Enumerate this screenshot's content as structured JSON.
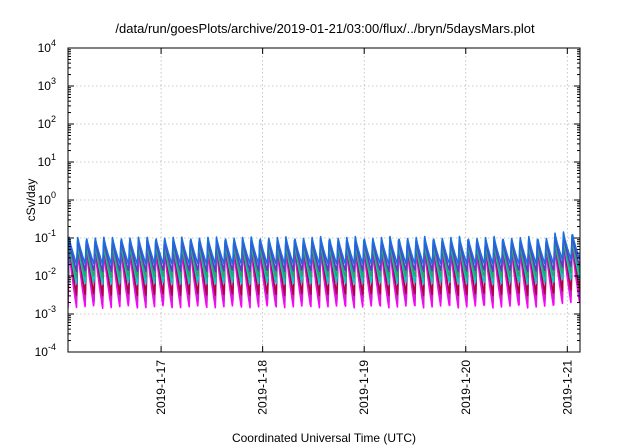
{
  "chart_data": {
    "type": "line",
    "title": "/data/run/goesPlots/archive/2019-01-21/03:00/flux/../bryn/5daysMars.plot",
    "xlabel": "Coordinated Universal Time (UTC)",
    "ylabel": "cSv/day",
    "yscale": "log",
    "ylim": [
      0.0001,
      10000
    ],
    "xlim": [
      "2019-01-16 02:00",
      "2019-01-21 03:00"
    ],
    "grid": true,
    "y_ticks": [
      {
        "base": "10",
        "exp": "-4",
        "value": 0.0001
      },
      {
        "base": "10",
        "exp": "-3",
        "value": 0.001
      },
      {
        "base": "10",
        "exp": "-2",
        "value": 0.01
      },
      {
        "base": "10",
        "exp": "-1",
        "value": 0.1
      },
      {
        "base": "10",
        "exp": "0",
        "value": 1
      },
      {
        "base": "10",
        "exp": "1",
        "value": 10
      },
      {
        "base": "10",
        "exp": "2",
        "value": 100
      },
      {
        "base": "10",
        "exp": "3",
        "value": 1000
      },
      {
        "base": "10",
        "exp": "4",
        "value": 10000
      }
    ],
    "x_ticks": [
      {
        "label": "2019-1-17",
        "value": "2019-01-17 00:00"
      },
      {
        "label": "2019-1-18",
        "value": "2019-01-18 00:00"
      },
      {
        "label": "2019-1-19",
        "value": "2019-01-19 00:00"
      },
      {
        "label": "2019-1-20",
        "value": "2019-01-20 00:00"
      },
      {
        "label": "2019-1-21",
        "value": "2019-01-21 00:00"
      }
    ],
    "period_hours": 2.05,
    "series": [
      {
        "color": "#ff00ff",
        "peak": 0.06,
        "trough": 0.0014
      },
      {
        "color": "#cc22cc",
        "peak": 0.07,
        "trough": 0.002
      },
      {
        "color": "#b00040",
        "peak": 0.09,
        "trough": 0.003
      },
      {
        "color": "#00cccc",
        "peak": 0.08,
        "trough": 0.006
      },
      {
        "color": "#22aa66",
        "peak": 0.085,
        "trough": 0.009
      },
      {
        "color": "#6633cc",
        "peak": 0.1,
        "trough": 0.013
      },
      {
        "color": "#1a6fe0",
        "peak": 0.11,
        "trough": 0.02
      }
    ]
  }
}
